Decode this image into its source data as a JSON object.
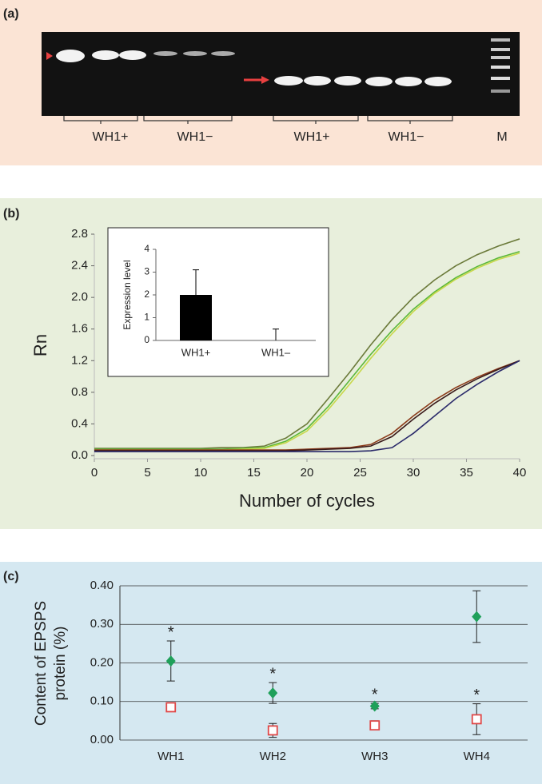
{
  "gel": {
    "label": "(a)",
    "lanes": [
      "WH1+",
      "WH1−",
      "WH1+",
      "WH1−",
      "M"
    ]
  },
  "chart_data": [
    {
      "type": "line",
      "label": "(b)",
      "xlabel": "Number of cycles",
      "ylabel": "Rn",
      "x": [
        0,
        2,
        4,
        6,
        8,
        10,
        12,
        14,
        16,
        18,
        20,
        22,
        24,
        26,
        28,
        30,
        32,
        34,
        36,
        38,
        40
      ],
      "series": [
        {
          "color": "#6b7a3a",
          "values": [
            0.09,
            0.09,
            0.09,
            0.09,
            0.09,
            0.09,
            0.1,
            0.1,
            0.12,
            0.22,
            0.4,
            0.72,
            1.05,
            1.4,
            1.72,
            2.0,
            2.22,
            2.4,
            2.54,
            2.65,
            2.74
          ]
        },
        {
          "color": "#5cb83a",
          "values": [
            0.08,
            0.08,
            0.08,
            0.08,
            0.08,
            0.08,
            0.08,
            0.09,
            0.1,
            0.18,
            0.34,
            0.62,
            0.95,
            1.28,
            1.58,
            1.85,
            2.07,
            2.25,
            2.39,
            2.5,
            2.58
          ]
        },
        {
          "color": "#c8d84a",
          "values": [
            0.07,
            0.07,
            0.07,
            0.07,
            0.07,
            0.07,
            0.07,
            0.08,
            0.09,
            0.16,
            0.31,
            0.58,
            0.9,
            1.23,
            1.54,
            1.82,
            2.05,
            2.23,
            2.37,
            2.48,
            2.56
          ]
        },
        {
          "color": "#8a3a1a",
          "values": [
            0.07,
            0.07,
            0.07,
            0.07,
            0.07,
            0.07,
            0.07,
            0.07,
            0.07,
            0.07,
            0.08,
            0.09,
            0.1,
            0.14,
            0.28,
            0.5,
            0.7,
            0.86,
            0.99,
            1.1,
            1.2
          ]
        },
        {
          "color": "#3a1a1a",
          "values": [
            0.06,
            0.06,
            0.06,
            0.06,
            0.06,
            0.06,
            0.06,
            0.06,
            0.06,
            0.06,
            0.07,
            0.08,
            0.09,
            0.12,
            0.24,
            0.46,
            0.66,
            0.83,
            0.97,
            1.09,
            1.2
          ]
        },
        {
          "color": "#2a2a6a",
          "values": [
            0.05,
            0.05,
            0.05,
            0.05,
            0.05,
            0.05,
            0.05,
            0.05,
            0.05,
            0.05,
            0.05,
            0.05,
            0.05,
            0.06,
            0.1,
            0.28,
            0.5,
            0.72,
            0.9,
            1.06,
            1.2
          ]
        }
      ],
      "xlim": [
        0,
        40
      ],
      "xticks": [
        0,
        5,
        10,
        15,
        20,
        25,
        30,
        35,
        40
      ],
      "ylim": [
        0,
        2.8
      ],
      "yticks": [
        {
          "value": 0,
          "label": "0.0"
        },
        0.4,
        0.8,
        1.2,
        1.6,
        {
          "value": 2,
          "label": "2.0"
        },
        2.4,
        2.8
      ]
    },
    {
      "type": "bar",
      "ylabel": "Expression level",
      "categories": [
        "WH1+",
        "WH1–"
      ],
      "values": [
        2,
        0
      ],
      "errors": [
        1.1,
        0.5
      ],
      "color": "#000000",
      "ylim": [
        0,
        4
      ],
      "yticks": [
        0,
        1,
        2,
        3,
        4
      ]
    },
    {
      "type": "scatter",
      "label": "(c)",
      "ylabel": [
        "Content of EPSPS",
        "protein (%)"
      ],
      "categories": [
        "WH1",
        "WH2",
        "WH3",
        "WH4"
      ],
      "series": [
        {
          "color": "#1fa05a",
          "marker": "diamond",
          "values": [
            0.205,
            0.122,
            0.088,
            0.32
          ],
          "errors": [
            0.052,
            0.027,
            0.007,
            0.067
          ]
        },
        {
          "color": "#e04848",
          "marker": "square",
          "values": [
            0.085,
            0.025,
            0.038,
            0.054
          ],
          "errors": [
            0.003,
            0.018,
            0.012,
            0.04
          ]
        }
      ],
      "annotations": [
        "*",
        "*",
        "*",
        "*"
      ],
      "ylim": [
        0,
        0.4
      ],
      "yticks": [
        {
          "value": 0,
          "label": "0.00"
        },
        {
          "value": 0.1,
          "label": "0.10"
        },
        {
          "value": 0.2,
          "label": "0.20"
        },
        {
          "value": 0.3,
          "label": "0.30"
        },
        {
          "value": 0.4,
          "label": "0.40"
        }
      ],
      "grid": true
    }
  ]
}
